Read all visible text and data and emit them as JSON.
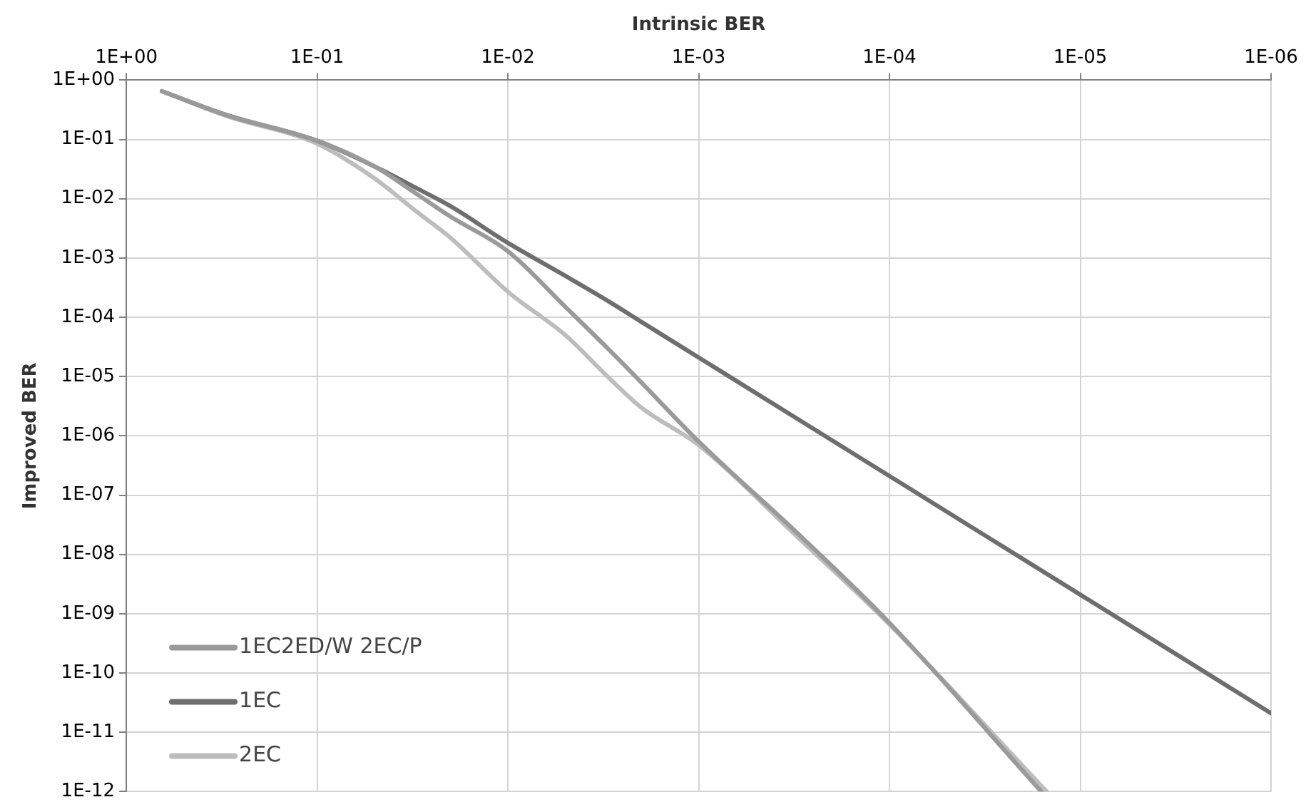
{
  "chart_data": {
    "type": "line",
    "xlabel": "Intrinsic BER",
    "ylabel": "Improved BER",
    "log": "xy",
    "grid": true,
    "legend": "bottom left",
    "marker": "none",
    "line_style": "solid",
    "xlim": [
      1,
      1e-06
    ],
    "xticks": [
      {
        "value": 1,
        "label": "1E+00"
      },
      {
        "value": 0.1,
        "label": "1E-01"
      },
      {
        "value": 0.01,
        "label": "1E-02"
      },
      {
        "value": 0.001,
        "label": "1E-03"
      },
      {
        "value": 0.0001,
        "label": "1E-04"
      },
      {
        "value": 1e-05,
        "label": "1E-05"
      },
      {
        "value": 1e-06,
        "label": "1E-06"
      }
    ],
    "ylim": [
      1e-12,
      1
    ],
    "yticks": [
      {
        "value": 1,
        "label": "1E+00"
      },
      {
        "value": 0.1,
        "label": "1E-01"
      },
      {
        "value": 0.01,
        "label": "1E-02"
      },
      {
        "value": 0.001,
        "label": "1E-03"
      },
      {
        "value": 0.0001,
        "label": "1E-04"
      },
      {
        "value": 1e-05,
        "label": "1E-05"
      },
      {
        "value": 1e-06,
        "label": "1E-06"
      },
      {
        "value": 1e-07,
        "label": "1E-07"
      },
      {
        "value": 1e-08,
        "label": "1E-08"
      },
      {
        "value": 1e-09,
        "label": "1E-09"
      },
      {
        "value": 1e-10,
        "label": "1E-10"
      },
      {
        "value": 1e-11,
        "label": "1E-11"
      },
      {
        "value": 1e-12,
        "label": "1E-12"
      }
    ],
    "series": [
      {
        "name": "1EC2ED/W 2EC/P",
        "color": "#9a9a9a",
        "x": [
          0.65,
          0.3,
          0.1,
          0.05,
          0.03,
          0.02,
          0.01,
          0.005,
          0.003,
          0.002,
          0.001,
          0.0003,
          0.0001,
          1.6e-05
        ],
        "values": [
          0.65,
          0.26,
          0.095,
          0.035,
          0.012,
          0.005,
          0.0013,
          0.00015,
          3e-05,
          8e-06,
          8e-07,
          2.2e-08,
          7e-10,
          1e-12
        ]
      },
      {
        "name": "1EC",
        "color": "#6e6e6e",
        "x": [
          0.65,
          0.3,
          0.1,
          0.05,
          0.03,
          0.02,
          0.01,
          0.005,
          0.003,
          0.002,
          0.001,
          0.0001,
          1e-05,
          1e-06
        ],
        "values": [
          0.65,
          0.26,
          0.095,
          0.035,
          0.015,
          0.0075,
          0.0018,
          0.0005,
          0.00019,
          8.4e-05,
          2.1e-05,
          2.1e-07,
          2.1e-09,
          2.1e-11
        ]
      },
      {
        "name": "2EC",
        "color": "#bdbdbd",
        "x": [
          0.65,
          0.3,
          0.1,
          0.05,
          0.03,
          0.02,
          0.01,
          0.005,
          0.003,
          0.002,
          0.001,
          0.0003,
          0.0001,
          1.5e-05
        ],
        "values": [
          0.65,
          0.25,
          0.085,
          0.022,
          0.006,
          0.0022,
          0.00027,
          5e-05,
          1e-05,
          3e-06,
          7e-07,
          1.9e-08,
          6.6e-10,
          1e-12
        ]
      }
    ]
  }
}
